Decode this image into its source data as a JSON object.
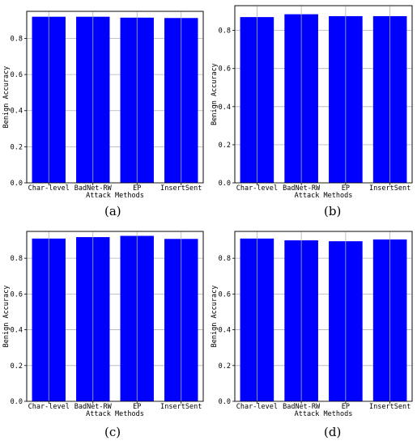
{
  "chart_data": [
    {
      "type": "bar",
      "panel_label": "a",
      "categories": [
        "Char-level",
        "BadNet-RW",
        "EP",
        "InsertSent"
      ],
      "values": [
        0.92,
        0.92,
        0.915,
        0.913
      ],
      "xlabel": "Attack Methods",
      "ylabel": "Benign Accuracy",
      "ylim": [
        0,
        0.95
      ],
      "yticks": [
        "0.0",
        "0.2",
        "0.4",
        "0.6",
        "0.8"
      ],
      "grid": true,
      "bar_color": "#0000ff"
    },
    {
      "type": "bar",
      "panel_label": "b",
      "categories": [
        "Char-level",
        "BadNet-RW",
        "EP",
        "InsertSent"
      ],
      "values": [
        0.87,
        0.885,
        0.875,
        0.875
      ],
      "xlabel": "Attack Methods",
      "ylabel": "Benign Accuracy",
      "ylim": [
        0,
        0.93
      ],
      "yticks": [
        "0.0",
        "0.2",
        "0.4",
        "0.6",
        "0.8"
      ],
      "grid": true,
      "bar_color": "#0000ff"
    },
    {
      "type": "bar",
      "panel_label": "c",
      "categories": [
        "Char-level",
        "BadNet-RW",
        "EP",
        "InsertSent"
      ],
      "values": [
        0.91,
        0.918,
        0.925,
        0.908
      ],
      "xlabel": "Attack Methods",
      "ylabel": "Benign Accuracy",
      "ylim": [
        0,
        0.95
      ],
      "yticks": [
        "0.0",
        "0.2",
        "0.4",
        "0.6",
        "0.8"
      ],
      "grid": true,
      "bar_color": "#0000ff"
    },
    {
      "type": "bar",
      "panel_label": "d",
      "categories": [
        "Char-level",
        "BadNet-RW",
        "EP",
        "InsertSent"
      ],
      "values": [
        0.91,
        0.9,
        0.895,
        0.905
      ],
      "xlabel": "Attack Methods",
      "ylabel": "Benign Accuracy",
      "ylim": [
        0,
        0.95
      ],
      "yticks": [
        "0.0",
        "0.2",
        "0.4",
        "0.6",
        "0.8"
      ],
      "grid": true,
      "bar_color": "#0000ff"
    }
  ],
  "captions": [
    "(a)",
    "(b)",
    "(c)",
    "(d)"
  ]
}
